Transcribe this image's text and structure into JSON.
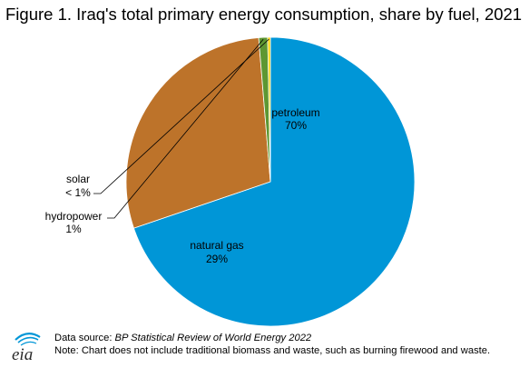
{
  "chart_data": {
    "type": "pie",
    "title": "Figure 1. Iraq's total primary energy consumption, share by fuel, 2021",
    "slices": [
      {
        "label": "petroleum",
        "value": 70,
        "value_label": "70%",
        "color": "#0096d7"
      },
      {
        "label": "natural gas",
        "value": 29,
        "value_label": "29%",
        "color": "#bd732a"
      },
      {
        "label": "hydropower",
        "value": 1,
        "value_label": "1%",
        "color": "#5d9732"
      },
      {
        "label": "solar",
        "value": 0.3,
        "value_label": "< 1%",
        "color": "#ffd200"
      }
    ],
    "start_angle_deg": 0,
    "direction": "clockwise",
    "legend": "none"
  },
  "footer": {
    "source_prefix": "Data source: ",
    "source_name": "BP Statistical Review of World Energy 2022",
    "note": "Note: Chart does not include traditional biomass and waste, such as burning firewood and waste."
  },
  "logo": {
    "text": "eia"
  }
}
